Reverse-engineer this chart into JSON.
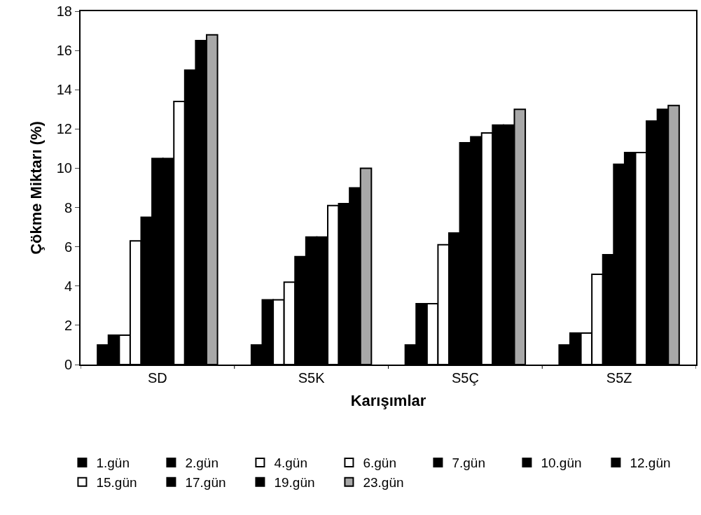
{
  "chart_data": {
    "type": "bar",
    "xlabel": "Karışımlar",
    "ylabel": "Çökme Miktarı (%)",
    "categories": [
      "SD",
      "S5K",
      "S5Ç",
      "S5Z"
    ],
    "series": [
      {
        "name": "1.gün",
        "color": "#000000",
        "values": [
          1.0,
          1.0,
          1.0,
          1.0
        ]
      },
      {
        "name": "2.gün",
        "color": "#000000",
        "values": [
          1.5,
          3.3,
          3.1,
          1.6
        ]
      },
      {
        "name": "4.gün",
        "color": "#ffffff",
        "values": [
          1.5,
          3.3,
          3.1,
          1.6
        ]
      },
      {
        "name": "6.gün",
        "color": "#ffffff",
        "values": [
          6.3,
          4.2,
          6.1,
          4.6
        ]
      },
      {
        "name": "7.gün",
        "color": "#000000",
        "values": [
          7.5,
          5.5,
          6.7,
          5.6
        ]
      },
      {
        "name": "10.gün",
        "color": "#000000",
        "values": [
          10.5,
          6.5,
          11.3,
          10.2
        ]
      },
      {
        "name": "12.gün",
        "color": "#000000",
        "values": [
          10.5,
          6.5,
          11.6,
          10.8
        ]
      },
      {
        "name": "15.gün",
        "color": "#ffffff",
        "values": [
          13.4,
          8.1,
          11.8,
          10.8
        ]
      },
      {
        "name": "17.gün",
        "color": "#000000",
        "values": [
          15.0,
          8.2,
          12.2,
          12.4
        ]
      },
      {
        "name": "19.gün",
        "color": "#000000",
        "values": [
          16.5,
          9.0,
          12.2,
          13.0
        ]
      },
      {
        "name": "23.gün",
        "color": "#a8a8a8",
        "values": [
          16.8,
          10.0,
          13.0,
          13.2
        ]
      }
    ],
    "ylim": [
      0,
      18
    ],
    "yticks": [
      0,
      2,
      4,
      6,
      8,
      10,
      12,
      14,
      16,
      18
    ],
    "legend": "bottom"
  }
}
